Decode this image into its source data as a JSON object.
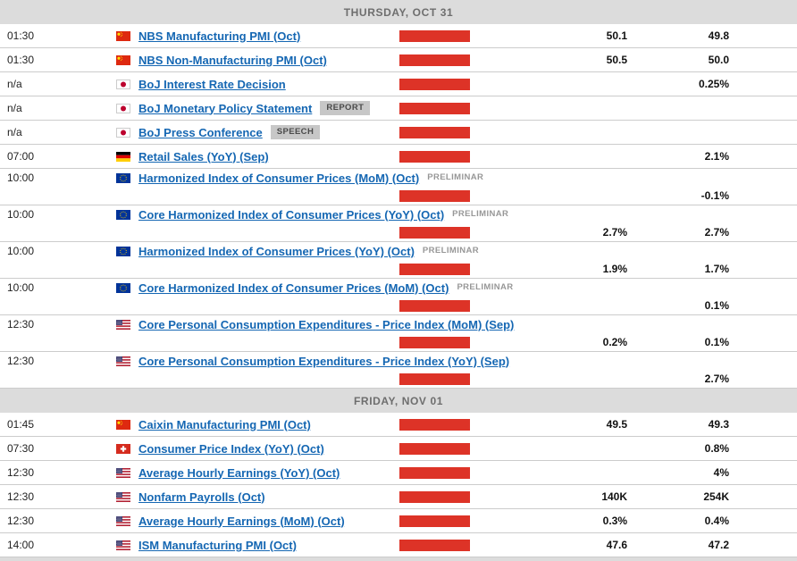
{
  "colors": {
    "impact_high_red": "#dd3327",
    "event_link_blue": "#1567b3",
    "section_header_bg": "#dcdcdc",
    "section_header_text": "#6e6e6e",
    "badge_chip_bg": "#c7c7c7",
    "badge_chip_text": "#4a4a4a",
    "preliminar_text": "#979797",
    "row_border": "#cccccc"
  },
  "sections": [
    {
      "header": "THURSDAY, OCT 31",
      "rows": [
        {
          "time": "01:30",
          "flag": "china-flag",
          "event": "NBS Manufacturing PMI (Oct)",
          "badge": "",
          "badge_type": "",
          "impact": "high",
          "forecast": "50.1",
          "previous": "49.8",
          "two_line": false
        },
        {
          "time": "01:30",
          "flag": "china-flag",
          "event": "NBS Non-Manufacturing PMI (Oct)",
          "badge": "",
          "badge_type": "",
          "impact": "high",
          "forecast": "50.5",
          "previous": "50.0",
          "two_line": false
        },
        {
          "time": "n/a",
          "flag": "japan-flag",
          "event": "BoJ Interest Rate Decision",
          "badge": "",
          "badge_type": "",
          "impact": "high",
          "forecast": "",
          "previous": "0.25%",
          "two_line": false
        },
        {
          "time": "n/a",
          "flag": "japan-flag",
          "event": "BoJ Monetary Policy Statement",
          "badge": "REPORT",
          "badge_type": "chip",
          "impact": "high",
          "forecast": "",
          "previous": "",
          "two_line": false
        },
        {
          "time": "n/a",
          "flag": "japan-flag",
          "event": "BoJ Press Conference",
          "badge": "SPEECH",
          "badge_type": "chip",
          "impact": "high",
          "forecast": "",
          "previous": "",
          "two_line": false
        },
        {
          "time": "07:00",
          "flag": "germany-flag",
          "event": "Retail Sales (YoY) (Sep)",
          "badge": "",
          "badge_type": "",
          "impact": "high",
          "forecast": "",
          "previous": "2.1%",
          "two_line": false
        },
        {
          "time": "10:00",
          "flag": "eu-flag",
          "event": "Harmonized Index of Consumer Prices (MoM) (Oct)",
          "badge": "PRELIMINAR",
          "badge_type": "text",
          "impact": "high",
          "forecast": "",
          "previous": "-0.1%",
          "two_line": true
        },
        {
          "time": "10:00",
          "flag": "eu-flag",
          "event": "Core Harmonized Index of Consumer Prices (YoY) (Oct)",
          "badge": "PRELIMINAR",
          "badge_type": "text",
          "impact": "high",
          "forecast": "2.7%",
          "previous": "2.7%",
          "two_line": true
        },
        {
          "time": "10:00",
          "flag": "eu-flag",
          "event": "Harmonized Index of Consumer Prices (YoY) (Oct)",
          "badge": "PRELIMINAR",
          "badge_type": "text",
          "impact": "high",
          "forecast": "1.9%",
          "previous": "1.7%",
          "two_line": true
        },
        {
          "time": "10:00",
          "flag": "eu-flag",
          "event": "Core Harmonized Index of Consumer Prices (MoM) (Oct)",
          "badge": "PRELIMINAR",
          "badge_type": "text",
          "impact": "high",
          "forecast": "",
          "previous": "0.1%",
          "two_line": true
        },
        {
          "time": "12:30",
          "flag": "us-flag",
          "event": "Core Personal Consumption Expenditures - Price Index (MoM) (Sep)",
          "badge": "",
          "badge_type": "",
          "impact": "high",
          "forecast": "0.2%",
          "previous": "0.1%",
          "two_line": true
        },
        {
          "time": "12:30",
          "flag": "us-flag",
          "event": "Core Personal Consumption Expenditures - Price Index (YoY) (Sep)",
          "badge": "",
          "badge_type": "",
          "impact": "high",
          "forecast": "",
          "previous": "2.7%",
          "two_line": true
        }
      ]
    },
    {
      "header": "FRIDAY, NOV 01",
      "rows": [
        {
          "time": "01:45",
          "flag": "china-flag",
          "event": "Caixin Manufacturing PMI (Oct)",
          "badge": "",
          "badge_type": "",
          "impact": "high",
          "forecast": "49.5",
          "previous": "49.3",
          "two_line": false
        },
        {
          "time": "07:30",
          "flag": "switzerland-flag",
          "event": "Consumer Price Index (YoY) (Oct)",
          "badge": "",
          "badge_type": "",
          "impact": "high",
          "forecast": "",
          "previous": "0.8%",
          "two_line": false
        },
        {
          "time": "12:30",
          "flag": "us-flag",
          "event": "Average Hourly Earnings (YoY) (Oct)",
          "badge": "",
          "badge_type": "",
          "impact": "high",
          "forecast": "",
          "previous": "4%",
          "two_line": false
        },
        {
          "time": "12:30",
          "flag": "us-flag",
          "event": "Nonfarm Payrolls (Oct)",
          "badge": "",
          "badge_type": "",
          "impact": "high",
          "forecast": "140K",
          "previous": "254K",
          "two_line": false
        },
        {
          "time": "12:30",
          "flag": "us-flag",
          "event": "Average Hourly Earnings (MoM) (Oct)",
          "badge": "",
          "badge_type": "",
          "impact": "high",
          "forecast": "0.3%",
          "previous": "0.4%",
          "two_line": false
        },
        {
          "time": "14:00",
          "flag": "us-flag",
          "event": "ISM Manufacturing PMI (Oct)",
          "badge": "",
          "badge_type": "",
          "impact": "high",
          "forecast": "47.6",
          "previous": "47.2",
          "two_line": false
        }
      ]
    }
  ]
}
